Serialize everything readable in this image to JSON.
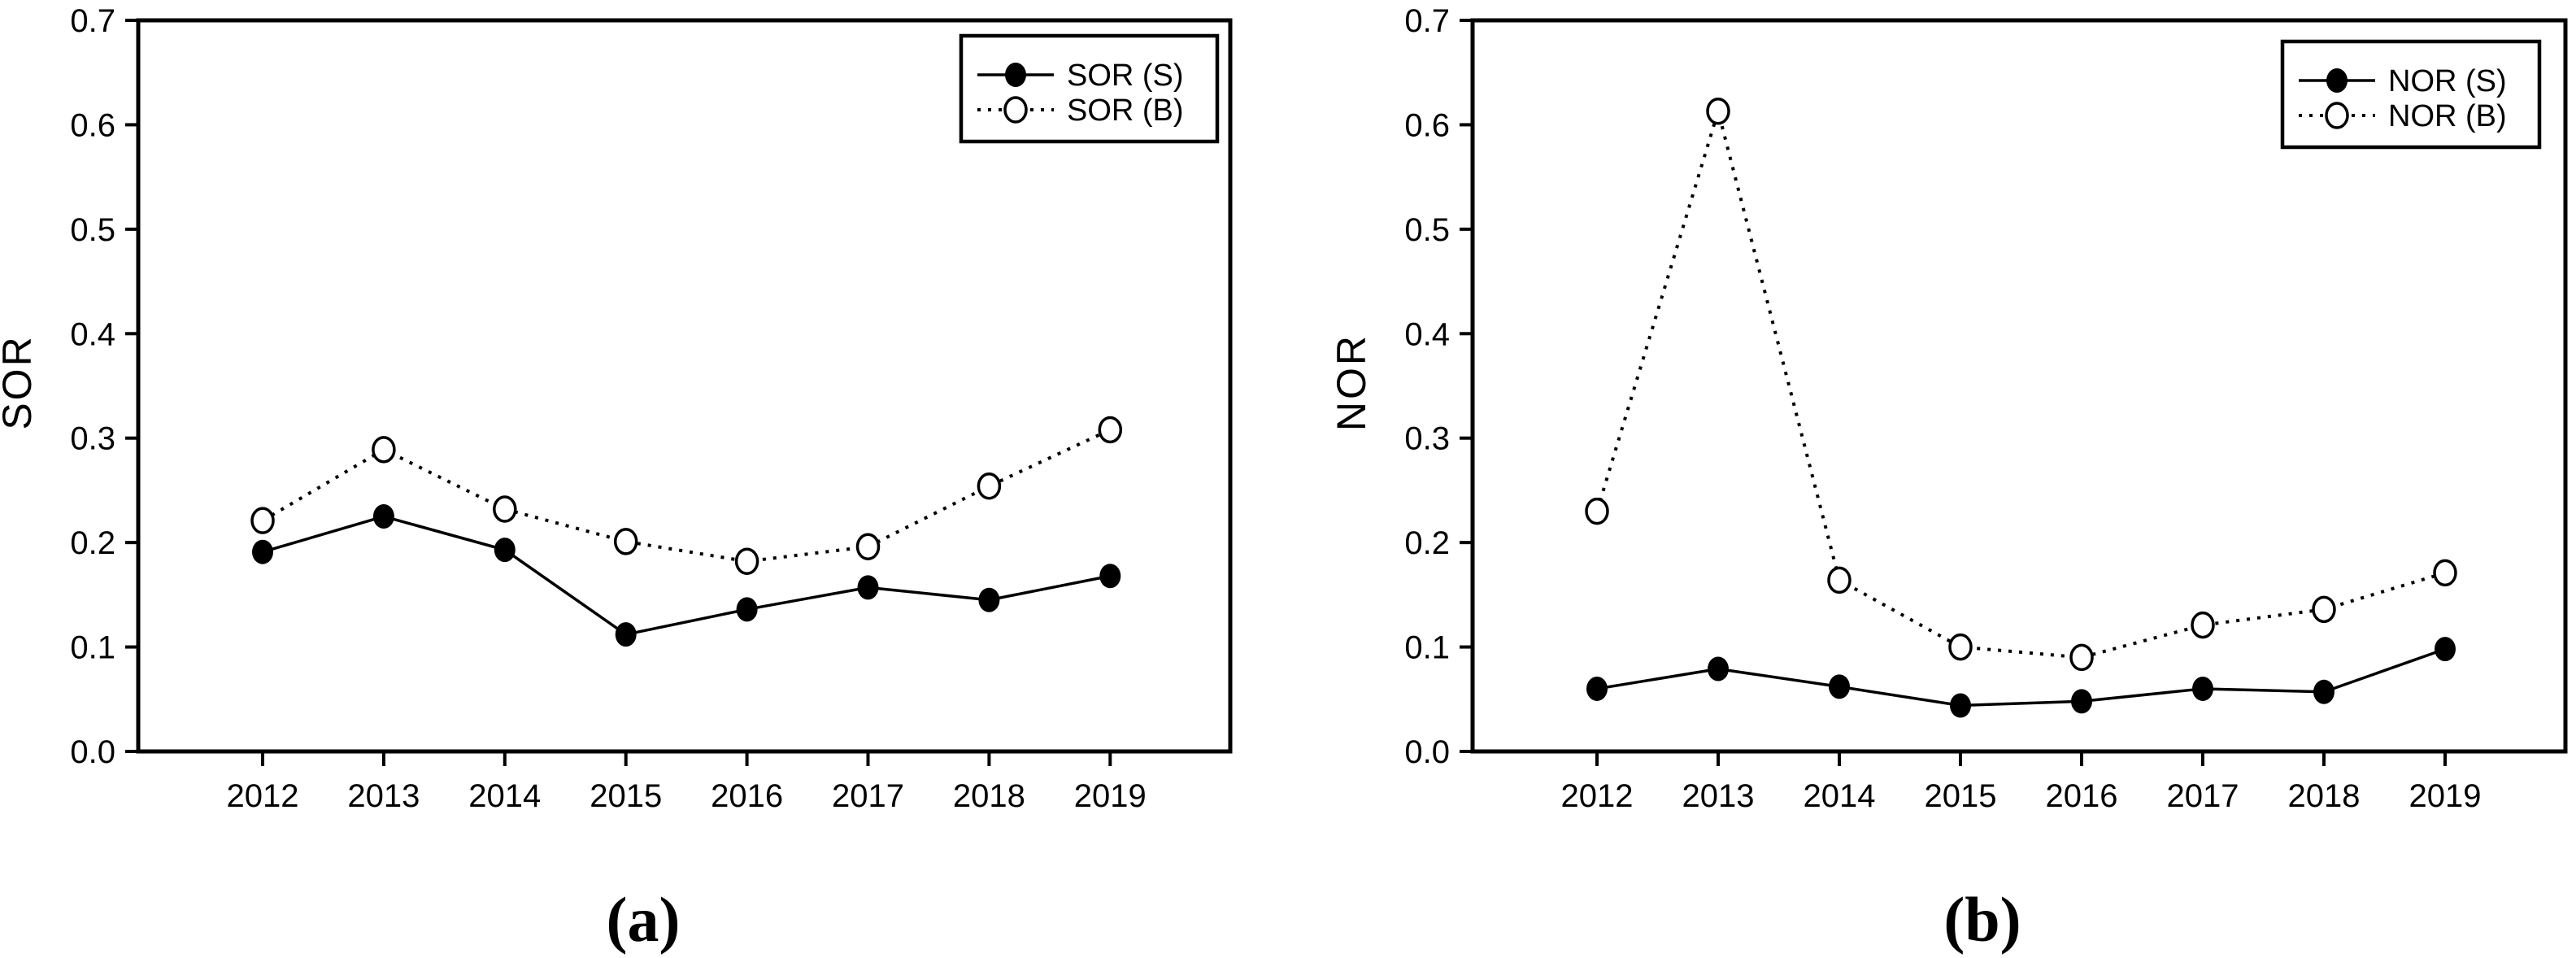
{
  "figure": {
    "background": "#ffffff",
    "foreground": "#000000"
  },
  "chart_data": [
    {
      "type": "line",
      "panel_label": "(a)",
      "title": "",
      "xlabel": "",
      "ylabel": "SOR",
      "categories": [
        "2012",
        "2013",
        "2014",
        "2015",
        "2016",
        "2017",
        "2018",
        "2019"
      ],
      "ylim": [
        0.0,
        0.7
      ],
      "ytick_labels": [
        "0.0",
        "0.1",
        "0.2",
        "0.3",
        "0.4",
        "0.5",
        "0.6",
        "0.7"
      ],
      "grid": false,
      "legend_position": "top-right-inside",
      "series": [
        {
          "name": "SOR (S)",
          "line_style": "solid",
          "marker": "filled-circle",
          "color": "#000000",
          "values": [
            0.191,
            0.225,
            0.193,
            0.112,
            0.136,
            0.157,
            0.145,
            0.168
          ]
        },
        {
          "name": "SOR (B)",
          "line_style": "dotted",
          "marker": "open-circle",
          "color": "#000000",
          "values": [
            0.221,
            0.289,
            0.232,
            0.201,
            0.182,
            0.196,
            0.254,
            0.308
          ]
        }
      ]
    },
    {
      "type": "line",
      "panel_label": "(b)",
      "title": "",
      "xlabel": "",
      "ylabel": "NOR",
      "categories": [
        "2012",
        "2013",
        "2014",
        "2015",
        "2016",
        "2017",
        "2018",
        "2019"
      ],
      "ylim": [
        0.0,
        0.7
      ],
      "ytick_labels": [
        "0.0",
        "0.1",
        "0.2",
        "0.3",
        "0.4",
        "0.5",
        "0.6",
        "0.7"
      ],
      "grid": false,
      "legend_position": "top-right-inside",
      "series": [
        {
          "name": "NOR (S)",
          "line_style": "solid",
          "marker": "filled-circle",
          "color": "#000000",
          "values": [
            0.06,
            0.079,
            0.062,
            0.044,
            0.048,
            0.06,
            0.057,
            0.098
          ]
        },
        {
          "name": "NOR (B)",
          "line_style": "dotted",
          "marker": "open-circle",
          "color": "#000000",
          "values": [
            0.23,
            0.613,
            0.164,
            0.1,
            0.09,
            0.121,
            0.136,
            0.171
          ]
        }
      ]
    }
  ]
}
